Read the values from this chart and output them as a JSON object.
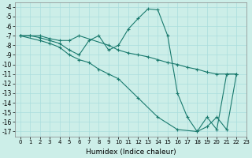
{
  "xlabel": "Humidex (Indice chaleur)",
  "bg_color": "#cceee8",
  "grid_color": "#aadddd",
  "line_color": "#1a7a6e",
  "xlim": [
    -0.5,
    23
  ],
  "ylim": [
    -17.5,
    -3.5
  ],
  "xticks": [
    0,
    1,
    2,
    3,
    4,
    5,
    6,
    7,
    8,
    9,
    10,
    11,
    12,
    13,
    14,
    15,
    16,
    17,
    18,
    19,
    20,
    21,
    22,
    23
  ],
  "yticks": [
    -4,
    -5,
    -6,
    -7,
    -8,
    -9,
    -10,
    -11,
    -12,
    -13,
    -14,
    -15,
    -16,
    -17
  ],
  "series1": {
    "points": [
      [
        0,
        -7
      ],
      [
        1,
        -7
      ],
      [
        2,
        -7
      ],
      [
        3,
        -7.3
      ],
      [
        4,
        -7.5
      ],
      [
        5,
        -7.5
      ],
      [
        6,
        -7
      ],
      [
        9,
        -8
      ],
      [
        10,
        -8.5
      ],
      [
        11,
        -8.8
      ],
      [
        12,
        -9
      ],
      [
        13,
        -9.2
      ],
      [
        14,
        -9.5
      ],
      [
        15,
        -9.8
      ],
      [
        16,
        -10
      ],
      [
        17,
        -10.3
      ],
      [
        18,
        -10.5
      ],
      [
        19,
        -10.8
      ],
      [
        20,
        -11
      ],
      [
        21,
        -11
      ],
      [
        22,
        -11
      ]
    ]
  },
  "series2": {
    "points": [
      [
        0,
        -7
      ],
      [
        1,
        -7
      ],
      [
        2,
        -7.2
      ],
      [
        3,
        -7.5
      ],
      [
        4,
        -7.8
      ],
      [
        5,
        -8.5
      ],
      [
        6,
        -9
      ],
      [
        7,
        -7.5
      ],
      [
        8,
        -7
      ],
      [
        9,
        -8.5
      ],
      [
        10,
        -8
      ],
      [
        11,
        -6.3
      ],
      [
        12,
        -5.2
      ],
      [
        13,
        -4.2
      ],
      [
        14,
        -4.3
      ],
      [
        15,
        -7
      ],
      [
        16,
        -13
      ],
      [
        17,
        -15.5
      ],
      [
        18,
        -17
      ],
      [
        19,
        -15.5
      ],
      [
        20,
        -16.8
      ],
      [
        21,
        -11
      ],
      [
        22,
        -11
      ]
    ]
  },
  "series3": {
    "points": [
      [
        0,
        -7
      ],
      [
        2,
        -7.5
      ],
      [
        3,
        -7.8
      ],
      [
        4,
        -8.2
      ],
      [
        5,
        -9
      ],
      [
        6,
        -9.5
      ],
      [
        7,
        -9.8
      ],
      [
        8,
        -10.5
      ],
      [
        9,
        -11
      ],
      [
        10,
        -11.5
      ],
      [
        12,
        -13.5
      ],
      [
        14,
        -15.5
      ],
      [
        16,
        -16.8
      ],
      [
        18,
        -17
      ],
      [
        19,
        -16.5
      ],
      [
        20,
        -15.5
      ],
      [
        21,
        -16.8
      ],
      [
        22,
        -11
      ]
    ]
  }
}
